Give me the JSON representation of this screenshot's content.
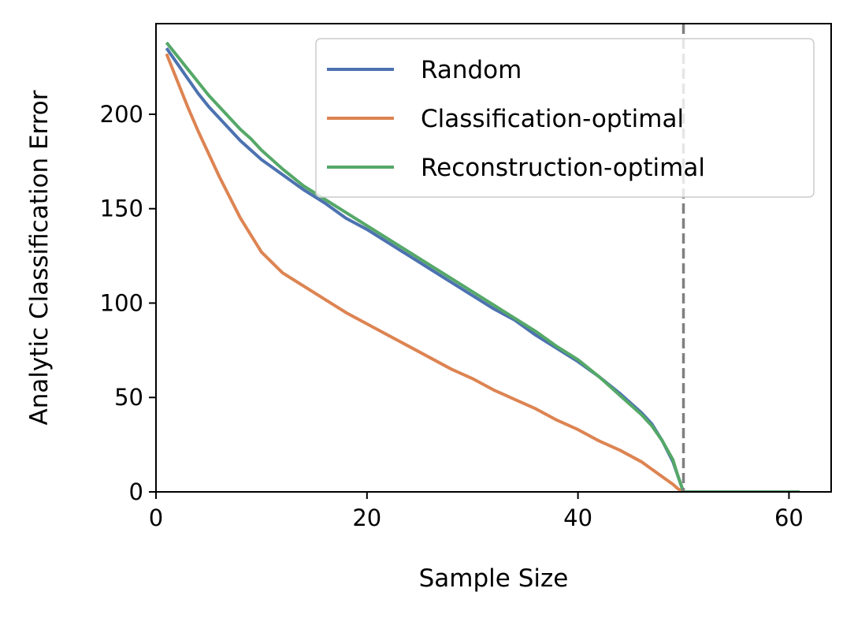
{
  "chart_data": {
    "type": "line",
    "xlabel": "Sample Size",
    "ylabel": "Analytic Classification Error",
    "xlim": [
      0,
      64
    ],
    "ylim": [
      0,
      248
    ],
    "xticks": [
      0,
      20,
      40,
      60
    ],
    "yticks": [
      0,
      50,
      100,
      150,
      200
    ],
    "grid": false,
    "legend_position": "top-right",
    "reference_line": {
      "x": 50,
      "style": "dashed",
      "color": "#808080"
    },
    "series": [
      {
        "name": "Random",
        "color": "#4c72b0",
        "x": [
          1,
          2,
          3,
          4,
          5,
          6,
          7,
          8,
          9,
          10,
          12,
          14,
          16,
          18,
          20,
          22,
          24,
          26,
          28,
          30,
          32,
          34,
          36,
          38,
          40,
          42,
          44,
          46,
          47,
          48,
          49,
          49.5,
          50,
          51,
          55,
          61
        ],
        "y": [
          235,
          227,
          219,
          211,
          204,
          198,
          192,
          186,
          181,
          176,
          168,
          160,
          153,
          145,
          139,
          132,
          125,
          118,
          111,
          104,
          97,
          91,
          83,
          76,
          69,
          61,
          52,
          42,
          36,
          27,
          16,
          8,
          0,
          0,
          0,
          0
        ]
      },
      {
        "name": "Classification-optimal",
        "color": "#dd8452",
        "x": [
          1,
          2,
          3,
          4,
          5,
          6,
          7,
          8,
          9,
          10,
          12,
          14,
          16,
          18,
          20,
          22,
          24,
          26,
          28,
          30,
          32,
          34,
          36,
          38,
          40,
          42,
          44,
          46,
          47,
          48,
          49,
          49.5,
          50,
          51,
          55,
          61
        ],
        "y": [
          232,
          218,
          204,
          191,
          179,
          167,
          156,
          145,
          136,
          127,
          116,
          109,
          102,
          95,
          89,
          83,
          77,
          71,
          65,
          60,
          54,
          49,
          44,
          38,
          33,
          27,
          22,
          16,
          12,
          8,
          4,
          1.5,
          0,
          0,
          0,
          0
        ]
      },
      {
        "name": "Reconstruction-optimal",
        "color": "#55a868",
        "x": [
          1,
          2,
          3,
          4,
          5,
          6,
          7,
          8,
          9,
          10,
          12,
          14,
          16,
          18,
          20,
          22,
          24,
          26,
          28,
          30,
          32,
          34,
          36,
          38,
          40,
          42,
          44,
          46,
          47,
          48,
          49,
          49.5,
          50,
          51,
          55,
          61
        ],
        "y": [
          238,
          231,
          224,
          217,
          210,
          204,
          198,
          192,
          187,
          181,
          171,
          162,
          155,
          148,
          141,
          134,
          127,
          120,
          113,
          106,
          99,
          92,
          85,
          77,
          70,
          61,
          51,
          41,
          35,
          27,
          17,
          8,
          0,
          0,
          0,
          0
        ]
      }
    ]
  }
}
